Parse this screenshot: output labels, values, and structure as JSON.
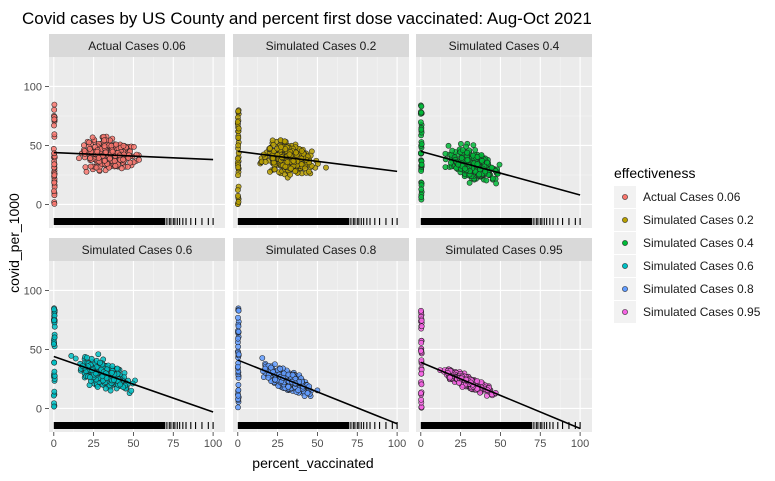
{
  "chart_data": {
    "type": "scatter",
    "title": "Covid cases by US County and percent first dose vaccinated: Aug-Oct 2021",
    "xlabel": "percent_vaccinated",
    "ylabel": "covid_per_1000",
    "xlim": [
      0,
      100
    ],
    "ylim": [
      -20,
      125
    ],
    "x_ticks": [
      "0",
      "25",
      "50",
      "75",
      "100"
    ],
    "y_ticks": [
      "0",
      "50",
      "100"
    ],
    "x_tick_values": [
      0,
      25,
      50,
      75,
      100
    ],
    "y_tick_values": [
      0,
      50,
      100
    ],
    "grid": true,
    "legend": {
      "title": "effectiveness",
      "position": "right"
    },
    "rug": true,
    "series": [
      {
        "name": "Actual Cases 0.06",
        "color": "#F8766D",
        "trend_line": [
          [
            0,
            44
          ],
          [
            100,
            38
          ]
        ],
        "center": 35,
        "cloud_height": 45
      },
      {
        "name": "Simulated Cases 0.2",
        "color": "#B79F00",
        "trend_line": [
          [
            0,
            45
          ],
          [
            100,
            28
          ]
        ],
        "center": 32,
        "cloud_height": 42
      },
      {
        "name": "Simulated Cases 0.4",
        "color": "#00BA38",
        "trend_line": [
          [
            0,
            45
          ],
          [
            100,
            8
          ]
        ],
        "center": 33,
        "cloud_height": 38
      },
      {
        "name": "Simulated Cases 0.6",
        "color": "#00BFC4",
        "trend_line": [
          [
            0,
            44
          ],
          [
            100,
            -3
          ]
        ],
        "center": 32,
        "cloud_height": 30
      },
      {
        "name": "Simulated Cases 0.8",
        "color": "#619CFF",
        "trend_line": [
          [
            0,
            41
          ],
          [
            100,
            -13
          ]
        ],
        "center": 32,
        "cloud_height": 20
      },
      {
        "name": "Simulated Cases 0.95",
        "color": "#F564E3",
        "trend_line": [
          [
            0,
            39
          ],
          [
            100,
            -17
          ]
        ],
        "center": 30,
        "cloud_height": 8
      }
    ]
  }
}
